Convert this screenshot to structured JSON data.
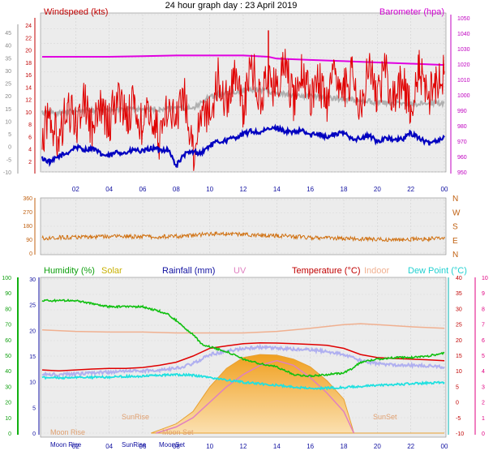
{
  "title": "24 hour graph day : 23 April 2019",
  "x_ticks": [
    "02",
    "04",
    "06",
    "08",
    "10",
    "12",
    "14",
    "16",
    "18",
    "20",
    "22",
    "00"
  ],
  "colors": {
    "windspeed": "#e00000",
    "barometer": "#e000e0",
    "avg_wind": "#0000c0",
    "gust_avg": "#b0b0b0",
    "direction": "#d07010",
    "humidity": "#10c010",
    "solar": "#f4b040",
    "rainfall": "#0000a0",
    "uv": "#e080c0",
    "temperature": "#e00000",
    "indoor": "#f0b090",
    "dewpoint": "#20e0e0",
    "dewpoint_axis": "#00b0b0",
    "uv_axis": "#e00080",
    "green_axis": "#10b010"
  },
  "chart_data": [
    {
      "type": "line",
      "panel": "wind",
      "left_label": "Windspeed (kts)",
      "right_label": "Barometer (hpa)",
      "left_ticks_outer": [
        "45",
        "40",
        "35",
        "30",
        "25",
        "20",
        "15",
        "10",
        "5",
        "0",
        "-5",
        "-10"
      ],
      "left_ticks_inner": [
        "24",
        "22",
        "20",
        "18",
        "16",
        "14",
        "12",
        "10",
        "8",
        "6",
        "4",
        "2"
      ],
      "right_ticks": [
        "1050",
        "1040",
        "1030",
        "1020",
        "1010",
        "1000",
        "990",
        "980",
        "970",
        "960",
        "950"
      ],
      "ylim": [
        0,
        25
      ],
      "series": [
        {
          "key": "windspeed",
          "x": [
            0,
            0.5,
            1,
            1.5,
            2,
            2.5,
            3,
            3.5,
            4,
            4.5,
            5,
            5.5,
            6,
            6.5,
            7,
            7.5,
            8,
            8.5,
            9,
            9.5,
            10,
            10.5,
            11,
            11.5,
            12,
            12.5,
            13,
            13.5,
            14,
            14.5,
            15,
            15.5,
            16,
            16.5,
            17,
            17.5,
            18,
            18.5,
            19,
            19.5,
            20,
            20.5,
            21,
            21.5,
            22,
            22.5,
            23,
            23.5,
            24
          ],
          "y": [
            6,
            9,
            4,
            11,
            7,
            12,
            6,
            10,
            8,
            12,
            9,
            11,
            7,
            10,
            5,
            11,
            8,
            12,
            3,
            10,
            9,
            15,
            11,
            16,
            10,
            17,
            12,
            15,
            13,
            17,
            11,
            16,
            12,
            15,
            10,
            16,
            13,
            15,
            11,
            17,
            12,
            16,
            11,
            15,
            10,
            16,
            12,
            14,
            16
          ]
        },
        {
          "key": "barometer",
          "x": [
            0,
            2,
            4,
            6,
            8,
            10,
            12,
            13.5,
            14,
            16,
            18,
            20,
            22,
            24
          ],
          "y": [
            18.3,
            18.3,
            18.3,
            18.4,
            18.5,
            18.5,
            18.5,
            18.3,
            18.0,
            17.8,
            17.6,
            17.4,
            17.2,
            17.0
          ]
        },
        {
          "key": "avg_wind",
          "x": [
            0,
            0.5,
            1,
            1.5,
            2,
            2.5,
            3,
            3.5,
            4,
            4.5,
            5,
            5.5,
            6,
            6.5,
            7,
            7.5,
            8,
            8.5,
            9,
            9.5,
            10,
            10.5,
            11,
            11.5,
            12,
            12.5,
            13,
            13.5,
            14,
            14.5,
            15,
            15.5,
            16,
            16.5,
            17,
            17.5,
            18,
            18.5,
            19,
            19.5,
            20,
            20.5,
            21,
            21.5,
            22,
            22.5,
            23,
            23.5,
            24
          ],
          "y": [
            2.2,
            1.5,
            2.5,
            3.0,
            4.0,
            3.5,
            3.8,
            2.8,
            2.5,
            3.2,
            3.0,
            3.5,
            3.2,
            3.8,
            3.5,
            3.6,
            1.0,
            2.8,
            3.2,
            3.0,
            4.2,
            4.8,
            5.0,
            5.5,
            6.0,
            6.5,
            6.2,
            6.8,
            7.0,
            6.5,
            6.2,
            6.6,
            5.8,
            6.2,
            5.5,
            6.0,
            6.2,
            5.4,
            5.2,
            5.8,
            4.8,
            5.5,
            5.0,
            5.2,
            6.2,
            5.4,
            4.5,
            5.0,
            5.5
          ]
        },
        {
          "key": "gust_avg",
          "x": [
            0,
            1,
            2,
            3,
            4,
            5,
            6,
            7,
            8,
            9,
            9.5,
            10,
            11,
            12,
            13,
            13.5,
            14,
            15,
            16,
            17,
            18,
            19,
            20,
            21,
            22,
            23,
            24
          ],
          "y": [
            9.4,
            9.4,
            9.7,
            9.8,
            9.9,
            10.0,
            9.9,
            10.0,
            10.0,
            10.2,
            11.0,
            12.0,
            12.5,
            13.0,
            13.0,
            12.8,
            12.5,
            12.2,
            12.0,
            11.8,
            11.6,
            11.4,
            11.0,
            11.0,
            10.8,
            10.8,
            11.0
          ]
        }
      ]
    },
    {
      "type": "line",
      "panel": "direction",
      "left_ticks": [
        "360",
        "270",
        "180",
        "90",
        "0"
      ],
      "right_ticks": [
        "N",
        "W",
        "S",
        "E",
        "N"
      ],
      "ylim": [
        0,
        360
      ],
      "series": [
        {
          "key": "direction",
          "x": [
            0,
            1,
            2,
            3,
            4,
            5,
            6,
            7,
            8,
            9,
            10,
            11,
            12,
            13,
            14,
            15,
            16,
            17,
            18,
            19,
            20,
            21,
            22,
            23,
            24
          ],
          "y": [
            100,
            105,
            108,
            110,
            110,
            112,
            110,
            110,
            112,
            118,
            130,
            128,
            125,
            120,
            118,
            112,
            105,
            102,
            98,
            96,
            92,
            90,
            92,
            95,
            98
          ]
        }
      ]
    },
    {
      "type": "line",
      "panel": "environment",
      "legend": [
        "Humidity (%)",
        "Solar",
        "Rainfall (mm)",
        "UV",
        "Temperature (°C)",
        "Indoor",
        "Dew Point (°C)"
      ],
      "left_ticks_outer": [
        "100",
        "90",
        "80",
        "70",
        "60",
        "50",
        "40",
        "30",
        "20",
        "10",
        "0"
      ],
      "left_ticks_inner": [
        "30",
        "25",
        "20",
        "15",
        "10",
        "5",
        "0"
      ],
      "right_ticks_temp": [
        "40",
        "35",
        "30",
        "25",
        "20",
        "15",
        "10",
        "5",
        "0",
        "-5",
        "-10"
      ],
      "right_ticks_uv": [
        "10",
        "9",
        "8",
        "7",
        "6",
        "5",
        "4",
        "3",
        "2",
        "1",
        "0"
      ],
      "annotations": {
        "moonrise_top": "Moon Rise",
        "sunrise_top": "SunRise",
        "moonset": "Moon Set",
        "sunset": "SunSet",
        "moonrise_bottom": "Moon Rise",
        "sunrise_bottom": "SunRise",
        "moonset_bottom": "MoonSet"
      },
      "ylim": [
        -10,
        40
      ],
      "series": [
        {
          "key": "temperature",
          "x": [
            0,
            1,
            2,
            3,
            4,
            5,
            6,
            7,
            8,
            9,
            10,
            11,
            12,
            13,
            14,
            15,
            16,
            17,
            18,
            19,
            20,
            21,
            22,
            23,
            24
          ],
          "y": [
            10.5,
            10.2,
            10.5,
            10.8,
            11.0,
            11.0,
            11.3,
            12.0,
            13.0,
            15.0,
            17.5,
            18.3,
            19.0,
            19.3,
            19.2,
            19.0,
            18.8,
            18.5,
            17.5,
            15.5,
            14.5,
            14.2,
            14.0,
            13.8,
            13.5
          ]
        },
        {
          "key": "indoor",
          "x": [
            0,
            2,
            4,
            6,
            8,
            10,
            12,
            14,
            16,
            18,
            19,
            20,
            22,
            24
          ],
          "y": [
            23.5,
            23.0,
            22.8,
            22.8,
            22.5,
            22.5,
            22.5,
            23.0,
            24.0,
            25.2,
            25.5,
            25.2,
            24.5,
            24.0
          ]
        },
        {
          "key": "dewpoint",
          "x": [
            0,
            2,
            4,
            6,
            8,
            9,
            10,
            12,
            14,
            16,
            18,
            20,
            22,
            24
          ],
          "y": [
            8.0,
            8.0,
            8.2,
            8.5,
            9.0,
            8.8,
            8.0,
            6.5,
            5.5,
            4.5,
            4.8,
            5.5,
            6.0,
            6.5
          ]
        },
        {
          "key": "humidity",
          "x": [
            0,
            1,
            2,
            3,
            4,
            5,
            6,
            7,
            7.5,
            8,
            8.5,
            9,
            9.5,
            10,
            11,
            12,
            13,
            14,
            15,
            16,
            17,
            18,
            18.5,
            19,
            20,
            21,
            22,
            23,
            24
          ],
          "y": [
            86,
            86,
            86,
            84,
            82,
            82,
            82,
            79,
            77,
            73,
            68,
            64,
            58,
            56,
            53,
            48,
            45,
            43,
            38,
            37,
            38,
            39,
            42,
            46,
            48,
            49,
            49,
            50,
            52
          ]
        },
        {
          "key": "rainfall_uv_blue",
          "x": [
            0,
            1,
            2,
            3,
            4,
            5,
            6,
            7,
            8,
            9,
            10,
            11,
            12,
            13,
            14,
            15,
            16,
            17,
            18,
            19,
            20,
            21,
            22,
            23,
            24
          ],
          "y": [
            9,
            9,
            9.2,
            9.5,
            9.8,
            10,
            10.2,
            10.5,
            11,
            12.5,
            15.5,
            16.5,
            17.5,
            17.8,
            17.5,
            17.2,
            17,
            16.5,
            15.5,
            13.5,
            12.5,
            12.2,
            12,
            11.8,
            11.5
          ]
        },
        {
          "key": "solar",
          "x": [
            6.5,
            7,
            8,
            9,
            10,
            11,
            12,
            13,
            14,
            15,
            16,
            17,
            18,
            18.5,
            18.6,
            24
          ],
          "y": [
            -10,
            -9,
            -7,
            -3,
            5,
            11,
            14.5,
            15.5,
            15.3,
            14,
            11.5,
            7,
            1,
            -8,
            -10,
            -10
          ]
        },
        {
          "key": "uv",
          "x": [
            6.8,
            8,
            9,
            10,
            11,
            12,
            13,
            14,
            15,
            16,
            17,
            18,
            18.6
          ],
          "y": [
            -10,
            -8,
            -5,
            0,
            5,
            9,
            12,
            13.5,
            12,
            8,
            3,
            -3,
            -10
          ]
        }
      ]
    }
  ]
}
